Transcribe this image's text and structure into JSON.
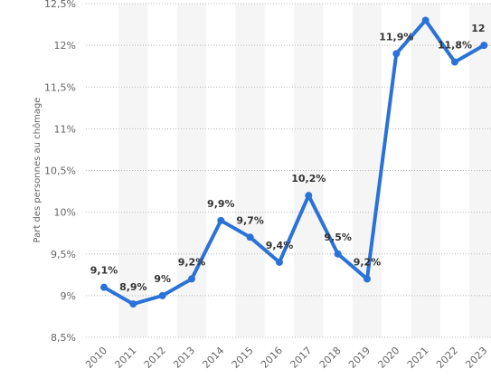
{
  "chart_data": {
    "type": "line",
    "ylabel": "Part des personnes au chômage",
    "xlabel": "",
    "x": [
      "2010",
      "2011",
      "2012",
      "2013",
      "2014",
      "2015",
      "2016",
      "2017",
      "2018",
      "2019",
      "2020",
      "2021",
      "2022",
      "2023"
    ],
    "series": [
      {
        "values": [
          9.1,
          8.9,
          9.0,
          9.2,
          9.9,
          9.7,
          9.4,
          10.2,
          9.5,
          9.2,
          11.9,
          12.3,
          11.8,
          12.0
        ],
        "labels": [
          "9,1%",
          "8,9%",
          "9%",
          "9,2%",
          "9,9%",
          "9,7%",
          "9,4%",
          "10,2%",
          "9,5%",
          "9,2%",
          "11,9%",
          "",
          "11,8%",
          "12"
        ],
        "color": "#2b72d8"
      }
    ],
    "ylim": [
      8.5,
      12.5
    ],
    "yticks": [
      8.5,
      9,
      9.5,
      10,
      10.5,
      11,
      11.5,
      12,
      12.5
    ],
    "ytick_labels": [
      "8,5%",
      "9%",
      "9,5%",
      "10%",
      "10,5%",
      "11%",
      "11,5%",
      "12%",
      "12,5%"
    ],
    "grid": true,
    "gridline_color": "#b8b8b8",
    "band_color": "#f5f5f5"
  }
}
